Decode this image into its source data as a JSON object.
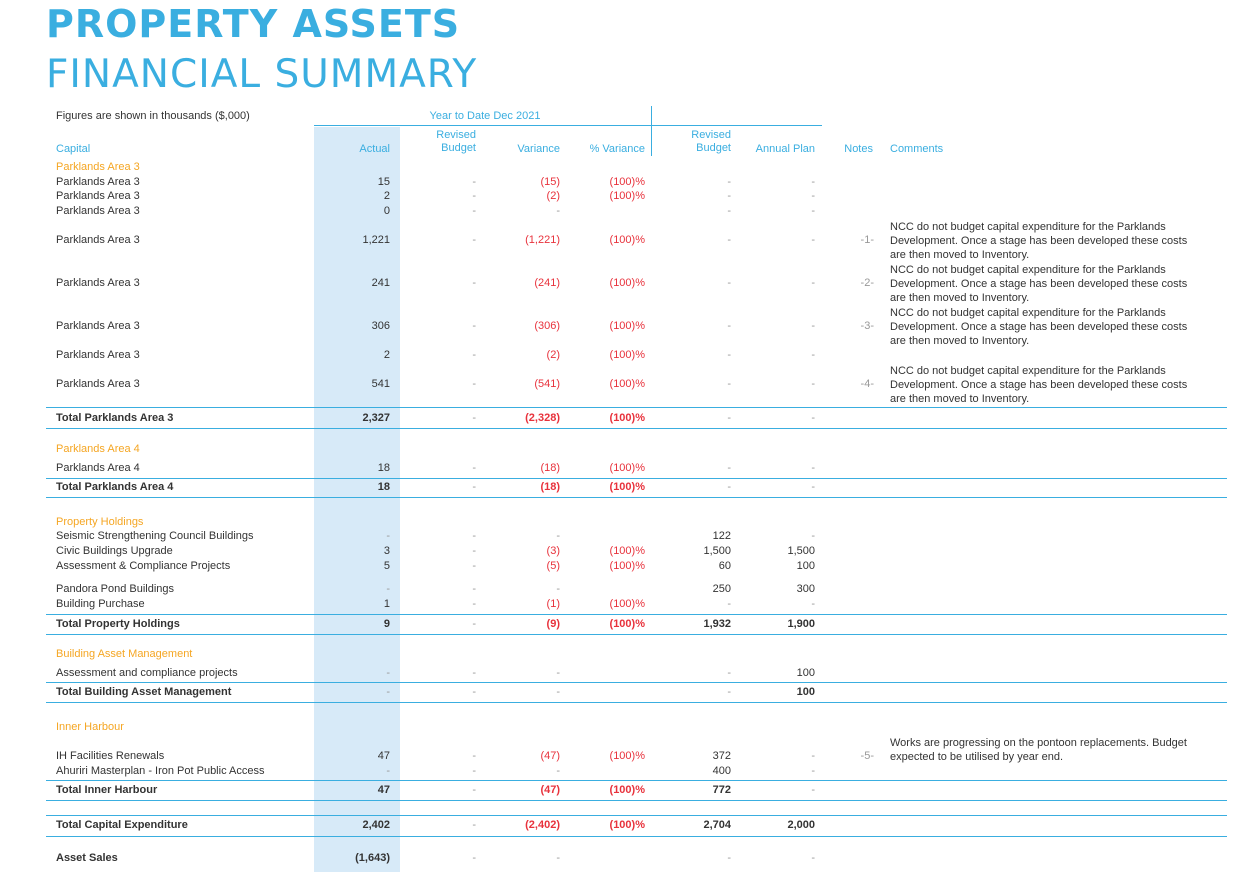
{
  "title": {
    "line1": "PROPERTY ASSETS",
    "line2": "FINANCIAL SUMMARY"
  },
  "figures_note": "Figures are shown in thousands ($,000)",
  "period_label": "Year to Date Dec 2021",
  "columns": {
    "capital": "Capital",
    "actual": "Actual",
    "revised_budget_1": "Revised",
    "revised_budget_2": "Budget",
    "variance": "Variance",
    "pct_variance": "% Variance",
    "revised_budget_b1": "Revised",
    "revised_budget_b2": "Budget",
    "annual_plan": "Annual Plan",
    "notes": "Notes",
    "comments": "Comments"
  },
  "rows": [
    {
      "kind": "section",
      "label": "Parklands Area 3"
    },
    {
      "kind": "item",
      "label": "Parklands Area 3",
      "actual": "15",
      "rb": "-",
      "var": "(15)",
      "pct": "(100)%",
      "rb2": "-",
      "ap": "-"
    },
    {
      "kind": "item",
      "label": "Parklands Area 3",
      "actual": "2",
      "rb": "-",
      "var": "(2)",
      "pct": "(100)%",
      "rb2": "-",
      "ap": "-"
    },
    {
      "kind": "item",
      "label": "Parklands Area 3",
      "actual": "0",
      "rb": "-",
      "var": "-",
      "rb2": "-",
      "ap": "-"
    },
    {
      "kind": "item",
      "label": "Parklands Area 3",
      "actual": "1,221",
      "rb": "-",
      "var": "(1,221)",
      "pct": "(100)%",
      "rb2": "-",
      "ap": "-",
      "note": "-1-",
      "comment": [
        "NCC do not budget capital expenditure for the Parklands",
        "Development. Once a stage has been developed these costs",
        "are then moved to Inventory."
      ]
    },
    {
      "kind": "item",
      "label": "Parklands Area 3",
      "actual": "241",
      "rb": "-",
      "var": "(241)",
      "pct": "(100)%",
      "rb2": "-",
      "ap": "-",
      "note": "-2-",
      "comment": [
        "NCC do not budget capital expenditure for the Parklands",
        "Development. Once a stage has been developed these costs",
        "are then moved to Inventory."
      ]
    },
    {
      "kind": "item",
      "label": "Parklands Area 3",
      "actual": "306",
      "rb": "-",
      "var": "(306)",
      "pct": "(100)%",
      "rb2": "-",
      "ap": "-",
      "note": "-3-",
      "comment": [
        "NCC do not budget capital expenditure for the Parklands",
        "Development. Once a stage has been developed these costs",
        "are then moved to Inventory."
      ]
    },
    {
      "kind": "item",
      "label": "Parklands Area 3",
      "actual": "2",
      "rb": "-",
      "var": "(2)",
      "pct": "(100)%",
      "rb2": "-",
      "ap": "-"
    },
    {
      "kind": "item",
      "label": "Parklands Area 3",
      "actual": "541",
      "rb": "-",
      "var": "(541)",
      "pct": "(100)%",
      "rb2": "-",
      "ap": "-",
      "note": "-4-",
      "comment": [
        "NCC do not budget capital expenditure for the Parklands",
        "Development. Once a stage has been developed these costs",
        "are then moved to Inventory."
      ]
    },
    {
      "kind": "total",
      "label": "Total Parklands Area 3",
      "actual": "2,327",
      "rb": "-",
      "var": "(2,328)",
      "pct": "(100)%",
      "rb2": "-",
      "ap": "-"
    },
    {
      "kind": "section",
      "label": "Parklands Area 4"
    },
    {
      "kind": "item",
      "label": "Parklands Area 4",
      "actual": "18",
      "rb": "-",
      "var": "(18)",
      "pct": "(100)%",
      "rb2": "-",
      "ap": "-"
    },
    {
      "kind": "total",
      "label": "Total Parklands Area 4",
      "actual": "18",
      "rb": "-",
      "var": "(18)",
      "pct": "(100)%",
      "rb2": "-",
      "ap": "-"
    },
    {
      "kind": "section",
      "label": "Property Holdings"
    },
    {
      "kind": "item",
      "label": "Seismic Strengthening Council Buildings",
      "actual": "-",
      "rb": "-",
      "var": "-",
      "rb2": "122",
      "ap": "-"
    },
    {
      "kind": "item",
      "label": "Civic Buildings Upgrade",
      "actual": "3",
      "rb": "-",
      "var": "(3)",
      "pct": "(100)%",
      "rb2": "1,500",
      "ap": "1,500"
    },
    {
      "kind": "item",
      "label": "Assessment & Compliance Projects",
      "actual": "5",
      "rb": "-",
      "var": "(5)",
      "pct": "(100)%",
      "rb2": "60",
      "ap": "100"
    },
    {
      "kind": "item",
      "label": "Pandora Pond Buildings",
      "actual": "-",
      "rb": "-",
      "var": "-",
      "rb2": "250",
      "ap": "300"
    },
    {
      "kind": "item",
      "label": "Building Purchase",
      "actual": "1",
      "rb": "-",
      "var": "(1)",
      "pct": "(100)%",
      "rb2": "-",
      "ap": "-"
    },
    {
      "kind": "total",
      "label": "Total Property Holdings",
      "actual": "9",
      "rb": "-",
      "var": "(9)",
      "pct": "(100)%",
      "rb2": "1,932",
      "ap": "1,900"
    },
    {
      "kind": "section",
      "label": "Building Asset Management"
    },
    {
      "kind": "item",
      "label": "Assessment and compliance projects",
      "actual": "-",
      "rb": "-",
      "var": "-",
      "rb2": "-",
      "ap": "100"
    },
    {
      "kind": "total",
      "label": "Total Building Asset Management",
      "actual": "-",
      "rb": "-",
      "var": "-",
      "rb2": "-",
      "ap": "100"
    },
    {
      "kind": "section",
      "label": "Inner Harbour"
    },
    {
      "kind": "item",
      "label": "IH Facilities Renewals",
      "actual": "47",
      "rb": "-",
      "var": "(47)",
      "pct": "(100)%",
      "rb2": "372",
      "ap": "-",
      "note": "-5-",
      "comment": [
        "Works are progressing on the pontoon replacements. Budget",
        "expected to be utilised by year end."
      ]
    },
    {
      "kind": "item",
      "label": "Ahuriri Masterplan - Iron Pot Public Access",
      "actual": "-",
      "rb": "-",
      "var": "-",
      "rb2": "400",
      "ap": "-"
    },
    {
      "kind": "total",
      "label": "Total Inner Harbour",
      "actual": "47",
      "rb": "-",
      "var": "(47)",
      "pct": "(100)%",
      "rb2": "772",
      "ap": "-"
    },
    {
      "kind": "total",
      "label": "Total Capital Expenditure",
      "actual": "2,402",
      "rb": "-",
      "var": "(2,402)",
      "pct": "(100)%",
      "rb2": "2,704",
      "ap": "2,000"
    },
    {
      "kind": "total",
      "label": "Asset Sales",
      "actual": "(1,643)",
      "rb": "-",
      "var": "-",
      "rb2": "-",
      "ap": "-"
    }
  ]
}
